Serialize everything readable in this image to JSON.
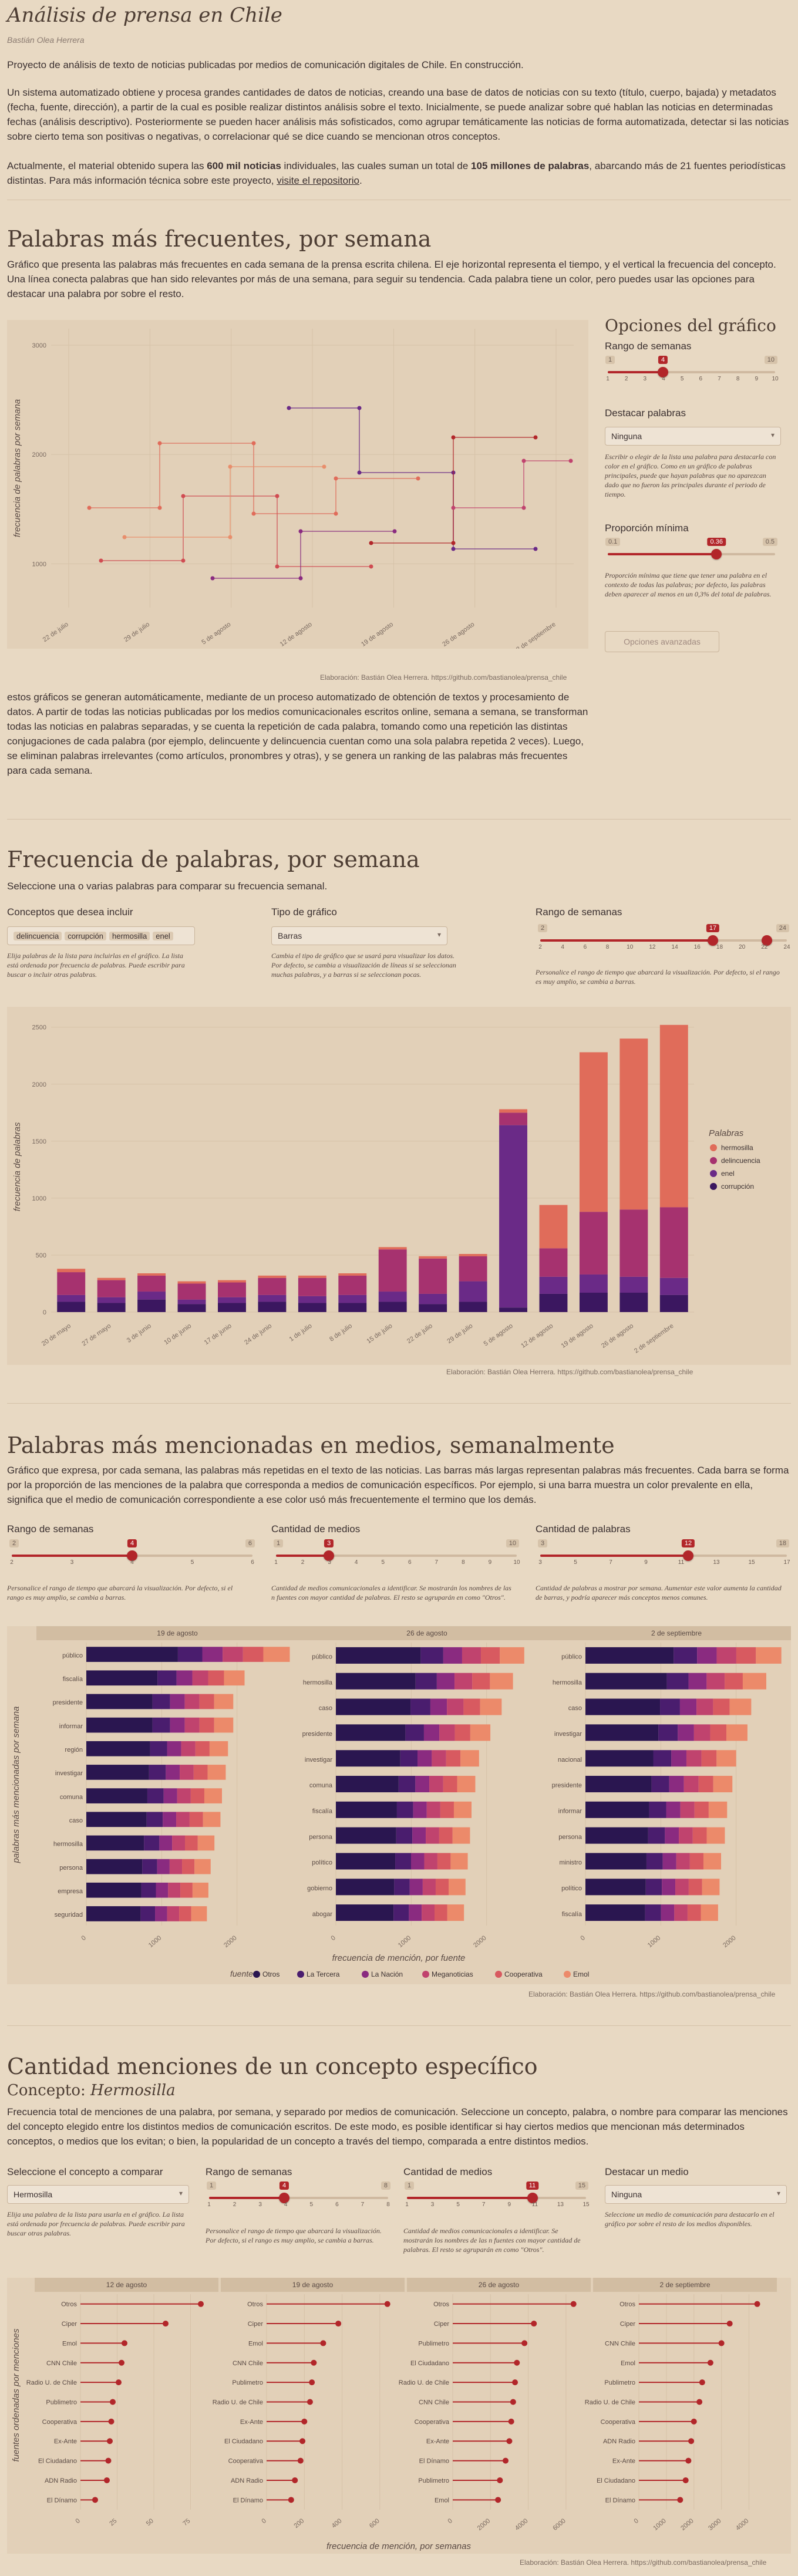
{
  "header": {
    "title": "Análisis de prensa en Chile",
    "author": "Bastián Olea Herrera",
    "intro1": "Proyecto de análisis de texto de noticias publicadas por medios de comunicación digitales de Chile. En construcción.",
    "intro2": "Un sistema automatizado obtiene y procesa grandes cantidades de datos de noticias, creando una base de datos de noticias con su texto (título, cuerpo, bajada) y metadatos (fecha, fuente, dirección), a partir de la cual es posible realizar distintos análisis sobre el texto. Inicialmente, se puede analizar sobre qué hablan las noticias en determinadas fechas (análisis descriptivo). Posteriormente se pueden hacer análisis más sofisticados, como agrupar temáticamente las noticias de forma automatizada, detectar si las noticias sobre cierto tema son positivas o negativas, o correlacionar qué se dice cuando se mencionan otros conceptos.",
    "intro3a": "Actualmente, el material obtenido supera las ",
    "intro3b": "600 mil noticias",
    "intro3c": " individuales, las cuales suman un total de ",
    "intro3d": "105 millones de palabras",
    "intro3e": ", abarcando más de 21 fuentes periodísticas distintas. Para más información técnica sobre este proyecto, ",
    "intro3f": "visite el repositorio",
    "intro3g": "."
  },
  "s1": {
    "title": "Palabras más frecuentes, por semana",
    "desc": "Gráfico que presenta las palabras más frecuentes en cada semana de la prensa escrita chilena. El eje horizontal representa el tiempo, y el vertical la frecuencia del concepto. Una línea conecta palabras que han sido relevantes por más de una semana, para seguir su tendencia. Cada palabra tiene un color, pero puedes usar las opciones para destacar una palabra por sobre el resto.",
    "opts_title": "Opciones del gráfico",
    "range_label": "Rango de semanas",
    "range_min": "1",
    "range_max": "10",
    "range_val": "4",
    "range_ticks": [
      "1",
      "2",
      "3",
      "4",
      "5",
      "6",
      "7",
      "8",
      "9",
      "10"
    ],
    "highlight_label": "Destacar palabras",
    "highlight_value": "Ninguna",
    "highlight_note": "Escribir o elegir de la lista una palabra para destacarla con color en el gráfico. Como en un gráfico de palabras principales, puede que hayan palabras que no aparezcan dado que no fueron las principales durante el periodo de tiempo.",
    "prop_label": "Proporción mínima",
    "prop_min": "0.1",
    "prop_max": "0.5",
    "prop_val": "0.36",
    "prop_note": "Proporción mínima que tiene que tener una palabra en el contexto de todas las palabras; por defecto, las palabras deben aparecer al menos en un 0,3% del total de palabras.",
    "apply_label": "Opciones avanzadas",
    "ylabel": "frecuencia de palabras por semana",
    "caption": "Elaboración: Bastián Olea Herrera. https://github.com/bastianolea/prensa_chile",
    "post": "estos gráficos se generan automáticamente, mediante de un proceso automatizado de obtención de textos y procesamiento de datos. A partir de todas las noticias publicadas por los medios comunicacionales escritos online, semana a semana, se transforman todas las noticias en palabras separadas, y se cuenta la repetición de cada palabra, tomando como una repetición las distintas conjugaciones de cada palabra (por ejemplo, delincuente y delincuencia cuentan como una sola palabra repetida 2 veces). Luego, se eliminan palabras irrelevantes (como artículos, pronombres y otras), y se genera un ranking de las palabras más frecuentes para cada semana."
  },
  "chart1": {
    "type": "line",
    "x": [
      "22 de julio",
      "29 de julio",
      "5 de agosto",
      "12 de agosto",
      "19 de agosto",
      "26 de agosto",
      "2 de septiembre"
    ],
    "yticks": [
      "1000",
      "2000",
      "3000"
    ],
    "ylim": [
      600,
      3150
    ]
  },
  "s2": {
    "title": "Frecuencia de palabras, por semana",
    "desc": "Seleccione una o varias palabras para comparar su frecuencia semanal.",
    "concepts_label": "Conceptos que desea incluir",
    "concepts": [
      "delincuencia",
      "corrupción",
      "hermosilla",
      "enel"
    ],
    "concepts_note": "Elija palabras de la lista para incluirlas en el gráfico. La lista está ordenada por frecuencia de palabras. Puede escribir para buscar o incluir otras palabras.",
    "type_label": "Tipo de gráfico",
    "type_value": "Barras",
    "type_note": "Cambia el tipo de gráfico que se usará para visualizar los datos. Por defecto, se cambia a visualización de líneas si se seleccionan muchas palabras, y a barras si se seleccionan pocas.",
    "range_label": "Rango de semanas",
    "range_min": "2",
    "range_max": "24",
    "range_val": "17",
    "range_ticks": [
      "2",
      "4",
      "6",
      "8",
      "10",
      "12",
      "14",
      "16",
      "18",
      "20",
      "22",
      "24"
    ],
    "range_note": "Personalice el rango de tiempo que abarcará la visualización. Por defecto, si el rango es muy amplio, se cambia a barras.",
    "ylabel": "frecuencia de palabras",
    "legend_title": "Palabras",
    "caption": "Elaboración: Bastián Olea Herrera. https://github.com/bastianolea/prensa_chile"
  },
  "chart_data": {
    "type": "bar",
    "stacked": true,
    "yticks": [
      "0",
      "500",
      "1000",
      "1500",
      "2000",
      "2500"
    ],
    "ylim": [
      0,
      2550
    ],
    "categories": [
      "20 de mayo",
      "27 de mayo",
      "3 de junio",
      "10 de junio",
      "17 de junio",
      "24 de junio",
      "1 de julio",
      "8 de julio",
      "15 de julio",
      "22 de julio",
      "29 de julio",
      "5 de agosto",
      "12 de agosto",
      "19 de agosto",
      "26 de agosto",
      "2 de septiembre"
    ],
    "series": [
      {
        "name": "corrupción",
        "color": "#3b1760",
        "values": [
          90,
          80,
          110,
          70,
          80,
          90,
          80,
          80,
          90,
          70,
          90,
          40,
          160,
          170,
          170,
          150
        ]
      },
      {
        "name": "enel",
        "color": "#6a2a87",
        "values": [
          60,
          50,
          70,
          40,
          50,
          60,
          60,
          70,
          90,
          90,
          180,
          1600,
          150,
          160,
          140,
          150
        ]
      },
      {
        "name": "delincuencia",
        "color": "#a6326f",
        "values": [
          200,
          150,
          140,
          140,
          130,
          150,
          160,
          170,
          370,
          310,
          220,
          110,
          250,
          550,
          590,
          620
        ]
      },
      {
        "name": "hermosilla",
        "color": "#e06c5a",
        "values": [
          30,
          20,
          20,
          20,
          20,
          20,
          20,
          20,
          20,
          20,
          20,
          30,
          380,
          1400,
          1500,
          1600
        ]
      }
    ],
    "bar_labels": [
      [
        "",
        "",
        "",
        "",
        "",
        "",
        "",
        "",
        "",
        "",
        "",
        "",
        "",
        "",
        "",
        ""
      ]
    ],
    "legend": [
      "hermosilla",
      "delincuencia",
      "enel",
      "corrupción"
    ]
  },
  "s3": {
    "title": "Palabras más mencionadas en medios, semanalmente",
    "desc": "Gráfico que expresa, por cada semana, las palabras más repetidas en el texto de las noticias. Las barras más largas representan palabras más frecuentes. Cada barra se forma por la proporción de las menciones de la palabra que corresponda a medios de comunicación específicos. Por ejemplo, si una barra muestra un color prevalente en ella, significa que el medio de comunicación correspondiente a ese color usó más frecuentemente el termino que los demás.",
    "range_label": "Rango de semanas",
    "range_min": "2",
    "range_max": "6",
    "range_val": "4",
    "range_ticks": [
      "2",
      "3",
      "4",
      "5",
      "6"
    ],
    "range_note": "Personalice el rango de tiempo que abarcará la visualización. Por defecto, si el rango es muy amplio, se cambia a barras.",
    "media_label": "Cantidad de medios",
    "media_min": "1",
    "media_max": "10",
    "media_val": "3",
    "media_ticks": [
      "1",
      "2",
      "3",
      "4",
      "5",
      "6",
      "7",
      "8",
      "9",
      "10"
    ],
    "media_note": "Cantidad de medios comunicacionales a identificar. Se mostrarán los nombres de las n fuentes con mayor cantidad de palabras. El resto se agruparán en como \"Otros\".",
    "words_label": "Cantidad de palabras",
    "words_min": "3",
    "words_max": "18",
    "words_val": "12",
    "words_ticks": [
      "3",
      "5",
      "7",
      "9",
      "11",
      "13",
      "15",
      "17"
    ],
    "words_note": "Cantidad de palabras a mostrar por semana. Aumentar este valor aumenta la cantidad de barras, y podría aparecer más conceptos menos comunes.",
    "ylabel": "palabras más mencionadas por semana",
    "xlabel": "frecuencia de mención, por fuente",
    "legend_title": "fuente",
    "legend": [
      {
        "name": "Otros",
        "color": "#2a1650"
      },
      {
        "name": "La Tercera",
        "color": "#4a1d6e"
      },
      {
        "name": "La Nación",
        "color": "#8a2b80"
      },
      {
        "name": "Meganoticias",
        "color": "#c0436e"
      },
      {
        "name": "Cooperativa",
        "color": "#d85a60"
      },
      {
        "name": "Emol",
        "color": "#ec8a6a"
      }
    ],
    "caption": "Elaboración: Bastián Olea Herrera. https://github.com/bastianolea/prensa_chile",
    "panels": [
      {
        "title": "19 de agosto",
        "xticks": [
          "0",
          "1000",
          "2000"
        ],
        "words": [
          "público",
          "fiscalía",
          "presidente",
          "informar",
          "región",
          "investigar",
          "comuna",
          "caso",
          "hermosilla",
          "persona",
          "empresa",
          "seguridad"
        ],
        "values": [
          2700,
          2100,
          1950,
          1950,
          1880,
          1850,
          1800,
          1780,
          1700,
          1650,
          1620,
          1600
        ]
      },
      {
        "title": "26 de agosto",
        "xticks": [
          "0",
          "1000",
          "2000"
        ],
        "words": [
          "público",
          "hermosilla",
          "caso",
          "presidente",
          "investigar",
          "comuna",
          "fiscalía",
          "persona",
          "político",
          "gobierno",
          "abogar"
        ],
        "values": [
          2500,
          2350,
          2200,
          2050,
          1900,
          1850,
          1800,
          1780,
          1750,
          1720,
          1700
        ]
      },
      {
        "title": "2 de septiembre",
        "xticks": [
          "0",
          "1000",
          "2000"
        ],
        "words": [
          "público",
          "hermosilla",
          "caso",
          "investigar",
          "nacional",
          "presidente",
          "informar",
          "persona",
          "ministro",
          "político",
          "fiscalía"
        ],
        "values": [
          2600,
          2400,
          2200,
          2150,
          2000,
          1950,
          1880,
          1850,
          1800,
          1780,
          1760
        ]
      }
    ]
  },
  "s4": {
    "title": "Cantidad menciones de un concepto específico",
    "concept_label": "Concepto:",
    "concept": "Hermosilla",
    "desc": "Frecuencia total de menciones de una palabra, por semana, y separado por medios de comunicación. Seleccione un concepto, palabra, o nombre para comparar las menciones del concepto elegido entre los distintos medios de comunicación escritos. De este modo, es posible identificar si hay ciertos medios que mencionan más determinados conceptos, o medios que los evitan; o bien, la popularidad de un concepto a través del tiempo, comparada a entre distintos medios.",
    "sel_label": "Seleccione el concepto a comparar",
    "sel_value": "Hermosilla",
    "sel_note": "Elija una palabra de la lista para usarla en el gráfico. La lista está ordenada por frecuencia de palabras. Puede escribir para buscar otras palabras.",
    "range_label": "Rango de semanas",
    "range_min": "1",
    "range_max": "8",
    "range_val": "4",
    "range_ticks": [
      "1",
      "2",
      "3",
      "4",
      "5",
      "6",
      "7",
      "8"
    ],
    "range_note": "Personalice el rango de tiempo que abarcará la visualización. Por defecto, si el rango es muy amplio, se cambia a barras.",
    "media_label": "Cantidad de medios",
    "media_min": "1",
    "media_max": "15",
    "media_val": "11",
    "media_ticks": [
      "1",
      "3",
      "5",
      "7",
      "9",
      "11",
      "13",
      "15"
    ],
    "media_note": "Cantidad de medios comunicacionales a identificar. Se mostrarán los nombres de las n fuentes con mayor cantidad de palabras. El resto se agruparán en como \"Otros\".",
    "hl_label": "Destacar un medio",
    "hl_value": "Ninguna",
    "hl_note": "Seleccione un medio de comunicación para destacarlo en el gráfico por sobre el resto de los medios disponibles.",
    "ylabel": "fuentes ordenadas por menciones",
    "xlabel": "frecuencia de mención, por semanas",
    "caption": "Elaboración: Bastián Olea Herrera. https://github.com/bastianolea/prensa_chile",
    "panels": [
      {
        "title": "12 de agosto",
        "xticks": [
          "0",
          "25",
          "50",
          "75"
        ],
        "max": 90,
        "sources": [
          "Otros",
          "Ciper",
          "Emol",
          "CNN Chile",
          "Radio U. de Chile",
          "Publimetro",
          "Cooperativa",
          "Ex-Ante",
          "El Ciudadano",
          "ADN Radio",
          "El Dínamo"
        ],
        "values": [
          82,
          58,
          30,
          28,
          26,
          22,
          21,
          20,
          19,
          18,
          10
        ]
      },
      {
        "title": "19 de agosto",
        "xticks": [
          "0",
          "200",
          "400",
          "600"
        ],
        "max": 700,
        "sources": [
          "Otros",
          "Ciper",
          "Emol",
          "CNN Chile",
          "Publimetro",
          "Radio U. de Chile",
          "Ex-Ante",
          "El Ciudadano",
          "Cooperativa",
          "ADN Radio",
          "El Dínamo"
        ],
        "values": [
          640,
          380,
          300,
          250,
          240,
          230,
          200,
          190,
          180,
          150,
          130
        ]
      },
      {
        "title": "26 de agosto",
        "xticks": [
          "0",
          "2000",
          "4000",
          "6000"
        ],
        "max": 7000,
        "sources": [
          "Otros",
          "Ciper",
          "Publimetro",
          "El Ciudadano",
          "Radio U. de Chile",
          "CNN Chile",
          "Cooperativa",
          "Ex-Ante",
          "El Dínamo",
          "Publimetro",
          "Emol"
        ],
        "values": [
          6400,
          4300,
          3800,
          3400,
          3300,
          3200,
          3100,
          3000,
          2800,
          2500,
          2400
        ]
      },
      {
        "title": "2 de septiembre",
        "xticks": [
          "0",
          "1000",
          "2000",
          "3000",
          "4000"
        ],
        "max": 4800,
        "sources": [
          "Otros",
          "Ciper",
          "CNN Chile",
          "Emol",
          "Publimetro",
          "Radio U. de Chile",
          "Cooperativa",
          "ADN Radio",
          "Ex-Ante",
          "El Ciudadano",
          "El Dínamo"
        ],
        "values": [
          4300,
          3300,
          3000,
          2600,
          2300,
          2200,
          2000,
          1900,
          1800,
          1700,
          1500
        ]
      }
    ]
  }
}
